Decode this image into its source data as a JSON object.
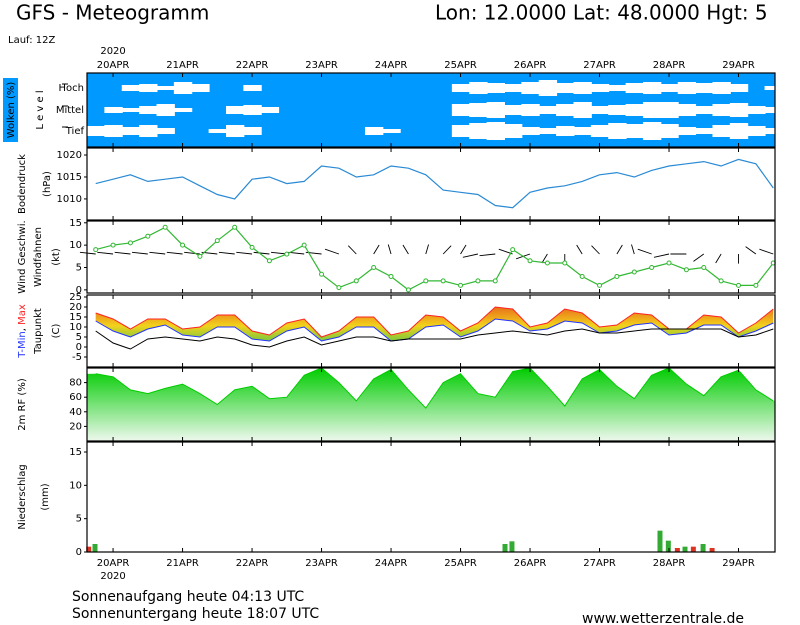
{
  "header": {
    "title": "GFS - Meteogramm",
    "location": "Lon: 12.0000 Lat: 48.0000 Hgt: 5",
    "run": "Lauf: 12Z"
  },
  "time_axis": {
    "year": "2020",
    "xlim": [
      -0.375,
      9.525
    ],
    "xticks": [
      {
        "value": 0,
        "label": "20APR"
      },
      {
        "value": 1,
        "label": "21APR"
      },
      {
        "value": 2,
        "label": "22APR"
      },
      {
        "value": 3,
        "label": "23APR"
      },
      {
        "value": 4,
        "label": "24APR"
      },
      {
        "value": 5,
        "label": "25APR"
      },
      {
        "value": 6,
        "label": "26APR"
      },
      {
        "value": 7,
        "label": "27APR"
      },
      {
        "value": 8,
        "label": "28APR"
      },
      {
        "value": 9,
        "label": "29APR"
      }
    ],
    "x": [
      -0.25,
      0,
      0.25,
      0.5,
      0.75,
      1,
      1.25,
      1.5,
      1.75,
      2,
      2.25,
      2.5,
      2.75,
      3,
      3.25,
      3.5,
      3.75,
      4,
      4.25,
      4.5,
      4.75,
      5,
      5.25,
      5.5,
      5.75,
      6,
      6.25,
      6.5,
      6.75,
      7,
      7.25,
      7.5,
      7.75,
      8,
      8.25,
      8.5,
      8.75,
      9,
      9.25,
      9.5
    ]
  },
  "chart_data": [
    {
      "type": "clouds",
      "ylabel": [
        "Wolken (%)",
        "L e v e l"
      ],
      "levels": [
        "Hoch",
        "Mittel",
        "Tief"
      ],
      "color": "#0099ff",
      "series": [
        {
          "values": [
            0,
            0,
            30,
            40,
            20,
            60,
            40,
            0,
            0,
            30,
            0,
            0,
            0,
            0,
            0,
            0,
            0,
            0,
            0,
            0,
            0,
            40,
            60,
            50,
            40,
            60,
            80,
            50,
            60,
            40,
            30,
            50,
            60,
            40,
            60,
            50,
            60,
            40,
            0,
            20
          ]
        },
        {
          "values": [
            0,
            30,
            20,
            40,
            60,
            20,
            0,
            0,
            40,
            50,
            30,
            0,
            0,
            0,
            0,
            0,
            0,
            0,
            0,
            0,
            0,
            60,
            70,
            80,
            50,
            60,
            40,
            60,
            80,
            40,
            50,
            60,
            80,
            80,
            60,
            40,
            60,
            70,
            40,
            30
          ]
        },
        {
          "values": [
            50,
            60,
            40,
            60,
            30,
            0,
            0,
            20,
            60,
            40,
            0,
            0,
            0,
            0,
            0,
            0,
            40,
            20,
            0,
            0,
            0,
            60,
            80,
            90,
            70,
            40,
            30,
            50,
            40,
            60,
            80,
            70,
            90,
            70,
            40,
            30,
            60,
            80,
            50,
            30
          ]
        }
      ]
    },
    {
      "type": "line",
      "ylabel": [
        "Bodendruck",
        "(hPa)"
      ],
      "color": "#2a8ad4",
      "ylim": [
        1005.2,
        1021.6
      ],
      "yticks": [
        1010,
        1015,
        1020
      ],
      "values": [
        1013.5,
        1014.5,
        1015.5,
        1014,
        1014.5,
        1015,
        1013,
        1011,
        1010,
        1014.5,
        1015,
        1013.5,
        1014,
        1017.5,
        1017,
        1015,
        1015.5,
        1017.5,
        1017,
        1015.5,
        1012,
        1011.5,
        1011,
        1008.5,
        1008,
        1011.5,
        1012.5,
        1013,
        1014,
        1015.5,
        1016,
        1015,
        1016.5,
        1017.5,
        1018,
        1018.5,
        1017.5,
        1019,
        1018,
        1012.5
      ]
    },
    {
      "type": "wind",
      "ylabel": [
        "Wind Geschwi.",
        "Windfahnen",
        "(kt)"
      ],
      "color": "#33b833",
      "ylim": [
        -0.7,
        15.4
      ],
      "yticks": [
        0,
        5,
        10,
        15
      ],
      "values": [
        9,
        10,
        10.5,
        12,
        14,
        10,
        7.5,
        11,
        14,
        9.5,
        6.5,
        8,
        10,
        3.5,
        0.5,
        2,
        5,
        3,
        0,
        2,
        2,
        1,
        2,
        2,
        9,
        6.5,
        6,
        6,
        3,
        1,
        3,
        4,
        5,
        6,
        4.5,
        5,
        2,
        1,
        1,
        6
      ],
      "direction": [
        280,
        280,
        280,
        280,
        280,
        280,
        280,
        280,
        280,
        280,
        280,
        280,
        280,
        280,
        300,
        330,
        20,
        350,
        340,
        10,
        30,
        20,
        250,
        260,
        300,
        240,
        200,
        180,
        340,
        330,
        20,
        350,
        300,
        250,
        270,
        220,
        200,
        180,
        320,
        300
      ]
    },
    {
      "type": "temperature",
      "separator": ", ",
      "unit": "(C)",
      "ylim": [
        -10,
        26
      ],
      "yticks": [
        -5,
        0,
        5,
        10,
        15,
        20,
        25
      ],
      "series": [
        {
          "name": "T-Min",
          "color": "#2233ff",
          "values": [
            13,
            8,
            5,
            9,
            11,
            6,
            5,
            10,
            10,
            4,
            3,
            8,
            10,
            3,
            5,
            10,
            10,
            3,
            4,
            10,
            11,
            5,
            8,
            14,
            13,
            8,
            9,
            13,
            12,
            7,
            8,
            11,
            12,
            6,
            7,
            11,
            11,
            5,
            8,
            12
          ]
        },
        {
          "name": "Max",
          "color": "#ff2222",
          "values": [
            17,
            14,
            9,
            14,
            14,
            9,
            10,
            16,
            16,
            8,
            6,
            12,
            14,
            5,
            8,
            15,
            15,
            6,
            8,
            16,
            15,
            8,
            12,
            20,
            19,
            10,
            12,
            19,
            17,
            10,
            11,
            17,
            16,
            9,
            9,
            16,
            15,
            7,
            12,
            19
          ]
        },
        {
          "name": "Taupunkt",
          "color": "#000000",
          "values": [
            8,
            2,
            -1,
            4,
            5,
            4,
            3,
            5,
            4,
            1,
            0,
            3,
            5,
            1,
            3,
            5,
            5,
            3,
            4,
            4,
            4,
            4,
            6,
            7,
            8,
            7,
            6,
            8,
            9,
            7,
            7,
            8,
            9,
            9,
            9,
            9,
            9,
            5,
            6,
            9
          ]
        }
      ]
    },
    {
      "type": "area",
      "ylabel": [
        "2m RF (%)"
      ],
      "color": "#00cc00",
      "ylim": [
        0,
        100
      ],
      "yticks": [
        20,
        40,
        60,
        80
      ],
      "values": [
        92,
        88,
        70,
        65,
        72,
        78,
        65,
        50,
        70,
        75,
        58,
        60,
        90,
        100,
        80,
        55,
        85,
        98,
        70,
        45,
        80,
        92,
        65,
        60,
        95,
        100,
        75,
        48,
        85,
        98,
        75,
        58,
        90,
        100,
        78,
        62,
        88,
        97,
        70,
        55
      ]
    },
    {
      "type": "bar",
      "ylabel": [
        "Niederschlag",
        "(mm)"
      ],
      "ylim": [
        0,
        16.5
      ],
      "yticks": [
        0,
        5,
        10,
        15
      ],
      "series": [
        {
          "color": "#33aa33",
          "x": [
            -0.26,
            5.64,
            5.74,
            7.87,
            7.99,
            8.23,
            8.49
          ],
          "values": [
            1.2,
            1.2,
            1.6,
            3.2,
            1.7,
            0.8,
            1.2
          ]
        },
        {
          "color": "#dd3322",
          "x": [
            -0.35,
            8.12,
            8.35,
            8.62
          ],
          "values": [
            0.8,
            0.6,
            0.8,
            0.6
          ]
        }
      ]
    }
  ],
  "footer": {
    "sunrise": "Sonnenaufgang heute 04:13 UTC",
    "sunset": "Sonnenuntergang heute 18:07 UTC",
    "source": "www.wetterzentrale.de"
  }
}
